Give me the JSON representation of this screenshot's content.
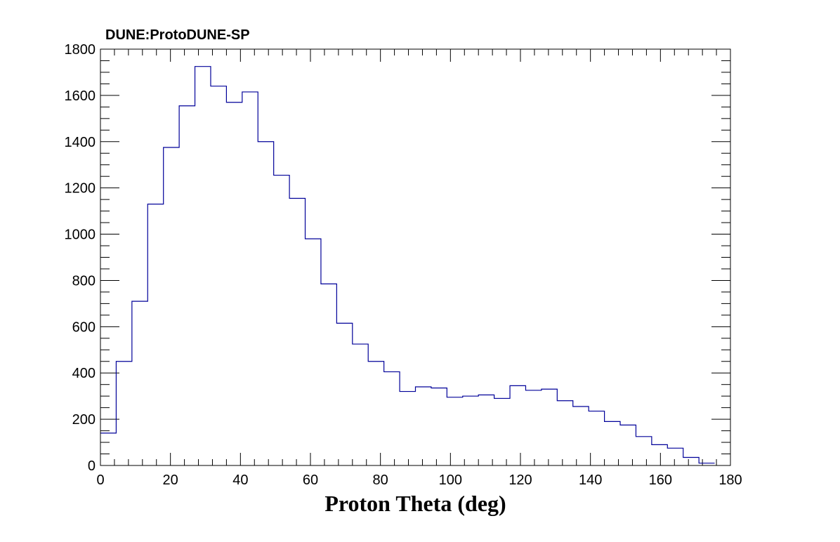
{
  "chart_data": {
    "type": "histogram",
    "title": "DUNE:ProtoDUNE-SP",
    "xlabel": "Proton Theta (deg)",
    "ylabel": "",
    "xlim": [
      0,
      180
    ],
    "ylim": [
      0,
      1800
    ],
    "x_ticks": [
      0,
      20,
      40,
      60,
      80,
      100,
      120,
      140,
      160,
      180
    ],
    "y_ticks": [
      0,
      200,
      400,
      600,
      800,
      1000,
      1200,
      1400,
      1600,
      1800
    ],
    "grid": false,
    "line_color": "#000099",
    "bin_edges": [
      0,
      4.5,
      9,
      13.5,
      18,
      22.5,
      27,
      31.5,
      36,
      40.5,
      45,
      49.5,
      54,
      58.5,
      63,
      67.5,
      72,
      76.5,
      81,
      85.5,
      90,
      94.5,
      99,
      103.5,
      108,
      112.5,
      117,
      121.5,
      126,
      130.5,
      135,
      139.5,
      144,
      148.5,
      153,
      157.5,
      162,
      166.5,
      171,
      175.5
    ],
    "values": [
      140,
      450,
      710,
      1130,
      1375,
      1555,
      1725,
      1640,
      1570,
      1615,
      1400,
      1255,
      1155,
      980,
      785,
      615,
      525,
      450,
      405,
      320,
      340,
      335,
      295,
      300,
      305,
      290,
      345,
      325,
      330,
      280,
      255,
      235,
      190,
      175,
      125,
      90,
      75,
      35,
      10
    ]
  }
}
